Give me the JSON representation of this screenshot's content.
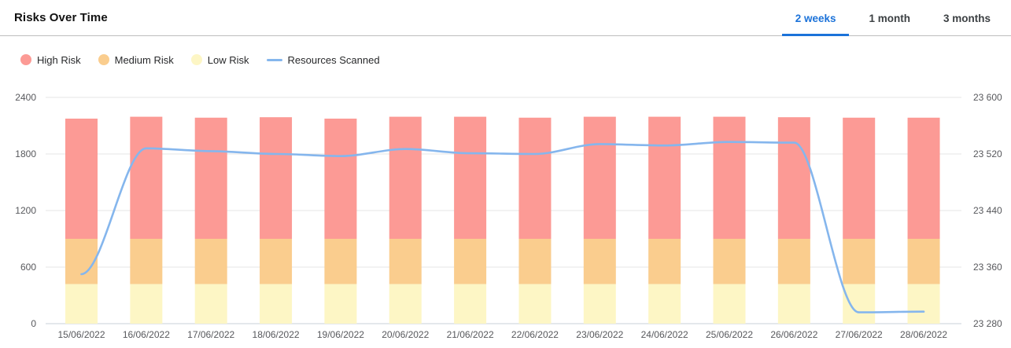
{
  "header": {
    "title": "Risks Over Time",
    "tabs": [
      {
        "label": "2 weeks",
        "active": true
      },
      {
        "label": "1 month",
        "active": false
      },
      {
        "label": "3 months",
        "active": false
      }
    ]
  },
  "legend": [
    {
      "label": "High Risk",
      "marker": "dot",
      "color": "#FC9A95"
    },
    {
      "label": "Medium Risk",
      "marker": "dot",
      "color": "#FACD8E"
    },
    {
      "label": "Low Risk",
      "marker": "dot",
      "color": "#FDF6C5"
    },
    {
      "label": "Resources Scanned",
      "marker": "line",
      "color": "#85B6ED"
    }
  ],
  "colors": {
    "active_tab_blue": "#1B72D9",
    "high_risk": "#FC9A95",
    "medium_risk": "#FACD8E",
    "low_risk": "#FDF6C5",
    "line_blue": "#85B6ED",
    "gridline": "#E4E4E4",
    "baseline": "#C9D2DA"
  },
  "chart_data": {
    "type": "bar",
    "subtype": "stacked-bars-with-line-overlay",
    "title": "Risks Over Time",
    "grid": "horizontal",
    "legend_position": "top-left",
    "categories": [
      "15/06/2022",
      "16/06/2022",
      "17/06/2022",
      "18/06/2022",
      "19/06/2022",
      "20/06/2022",
      "21/06/2022",
      "22/06/2022",
      "23/06/2022",
      "24/06/2022",
      "25/06/2022",
      "26/06/2022",
      "27/06/2022",
      "28/06/2022"
    ],
    "series": [
      {
        "name": "Low Risk",
        "type": "bar",
        "axis": "left",
        "color": "#FDF6C5",
        "values": [
          420,
          420,
          420,
          420,
          420,
          420,
          420,
          420,
          420,
          420,
          420,
          420,
          420,
          420
        ]
      },
      {
        "name": "Medium Risk",
        "type": "bar",
        "axis": "left",
        "color": "#FACD8E",
        "values": [
          480,
          480,
          480,
          480,
          480,
          480,
          480,
          480,
          480,
          480,
          480,
          480,
          480,
          480
        ]
      },
      {
        "name": "High Risk",
        "type": "bar",
        "axis": "left",
        "color": "#FC9A95",
        "values": [
          1275,
          1295,
          1285,
          1290,
          1275,
          1295,
          1295,
          1285,
          1295,
          1295,
          1295,
          1290,
          1285,
          1285
        ]
      },
      {
        "name": "Resources Scanned",
        "type": "line",
        "axis": "right",
        "color": "#85B6ED",
        "values": [
          23350,
          23528,
          23524,
          23520,
          23517,
          23527,
          23521,
          23520,
          23534,
          23532,
          23537,
          23536,
          23296,
          23297
        ]
      }
    ],
    "left_axis": {
      "range": [
        0,
        2400
      ],
      "ticks": [
        0,
        600,
        1200,
        1800,
        2400
      ],
      "tick_labels": [
        "0",
        "600",
        "1200",
        "1800",
        "2400"
      ]
    },
    "right_axis": {
      "range": [
        23280,
        23600
      ],
      "ticks": [
        23280,
        23360,
        23440,
        23520,
        23600
      ],
      "tick_labels": [
        "23 280",
        "23 360",
        "23 440",
        "23 520",
        "23 600"
      ]
    }
  }
}
